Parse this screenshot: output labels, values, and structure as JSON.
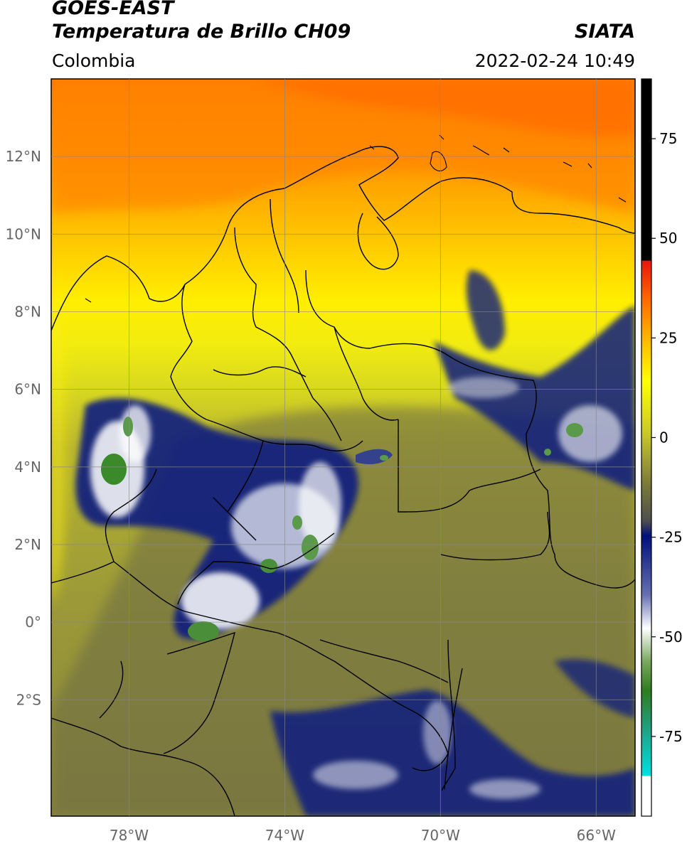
{
  "header": {
    "satellite": "GOES-EAST",
    "product": "Temperatura de Brillo CH09",
    "region": "Colombia",
    "agency": "SIATA",
    "timestamp": "2022-02-24 10:49"
  },
  "map": {
    "lon_range": [
      -80,
      -65
    ],
    "lat_range": [
      -5,
      14
    ],
    "lat_ticks": [
      {
        "value": 12,
        "label": "12°N"
      },
      {
        "value": 10,
        "label": "10°N"
      },
      {
        "value": 8,
        "label": "8°N"
      },
      {
        "value": 6,
        "label": "6°N"
      },
      {
        "value": 4,
        "label": "4°N"
      },
      {
        "value": 2,
        "label": "2°N"
      },
      {
        "value": 0,
        "label": "0°"
      },
      {
        "value": -2,
        "label": "2°S"
      }
    ],
    "lon_ticks": [
      {
        "value": -78,
        "label": "78°W"
      },
      {
        "value": -74,
        "label": "74°W"
      },
      {
        "value": -70,
        "label": "70°W"
      },
      {
        "value": -66,
        "label": "66°W"
      }
    ],
    "gridlines": true
  },
  "colorbar": {
    "range": [
      -95,
      90
    ],
    "ticks": [
      {
        "value": 75,
        "label": "75"
      },
      {
        "value": 50,
        "label": "50"
      },
      {
        "value": 25,
        "label": "25"
      },
      {
        "value": 0,
        "label": "0"
      },
      {
        "value": -25,
        "label": "-25"
      },
      {
        "value": -50,
        "label": "-50"
      },
      {
        "value": -75,
        "label": "-75"
      }
    ],
    "colors": {
      "above_8": "#000000",
      "red": "#e8160a",
      "orange": "#ff8c00",
      "yellow": "#ffff00",
      "olive": "#a9a932",
      "grey": "#4e4e4e",
      "navy": "#000f7d",
      "white": "#ffffff",
      "green": "#2e7d1e",
      "cyan": "#00e0e0"
    }
  }
}
